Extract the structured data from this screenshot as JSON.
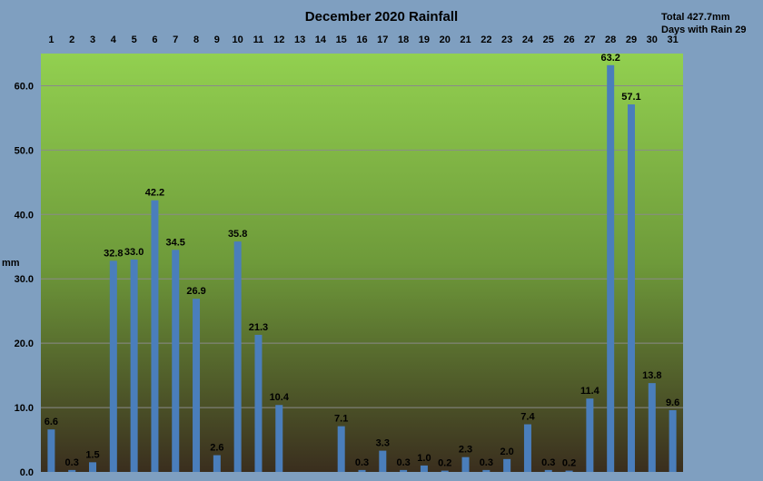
{
  "chart_data": {
    "type": "bar",
    "title": "December 2020 Rainfall",
    "total_text": "Total 427.7mm",
    "days_text": "Days with Rain 29",
    "ylabel": "mm",
    "xlabel": "",
    "ylim": [
      0,
      65
    ],
    "y_ticks": [
      "0.0",
      "10.0",
      "20.0",
      "30.0",
      "40.0",
      "50.0",
      "60.0"
    ],
    "x_axis_position": "top",
    "grid": true,
    "categories": [
      "1",
      "2",
      "3",
      "4",
      "5",
      "6",
      "7",
      "8",
      "9",
      "10",
      "11",
      "12",
      "13",
      "14",
      "15",
      "16",
      "17",
      "18",
      "19",
      "20",
      "21",
      "22",
      "23",
      "24",
      "25",
      "26",
      "27",
      "28",
      "29",
      "30",
      "31"
    ],
    "values": [
      6.6,
      0.3,
      1.5,
      32.8,
      33.0,
      42.2,
      34.5,
      26.9,
      2.6,
      35.8,
      21.3,
      10.4,
      0,
      0,
      7.1,
      0.3,
      3.3,
      0.3,
      1.0,
      0.2,
      2.3,
      0.3,
      2.0,
      7.4,
      0.3,
      0.2,
      11.4,
      63.2,
      57.1,
      13.8,
      9.6
    ],
    "data_labels": [
      "6.6",
      "0.3",
      "1.5",
      "32.8",
      "33.0",
      "42.2",
      "34.5",
      "26.9",
      "2.6",
      "35.8",
      "21.3",
      "10.4",
      "",
      "",
      "7.1",
      "0.3",
      "3.3",
      "0.3",
      "1.0",
      "0.2",
      "2.3",
      "0.3",
      "2.0",
      "7.4",
      "0.3",
      "0.2",
      "11.4",
      "63.2",
      "57.1",
      "13.8",
      "9.6"
    ],
    "colors": {
      "page_background": "#7f9fc0",
      "plot_top": "#92d050",
      "plot_mid": "#6e9a3a",
      "plot_bottom": "#3a2e1e",
      "bar": "#4a7ebb",
      "gridline": "#8a8a8a"
    }
  }
}
